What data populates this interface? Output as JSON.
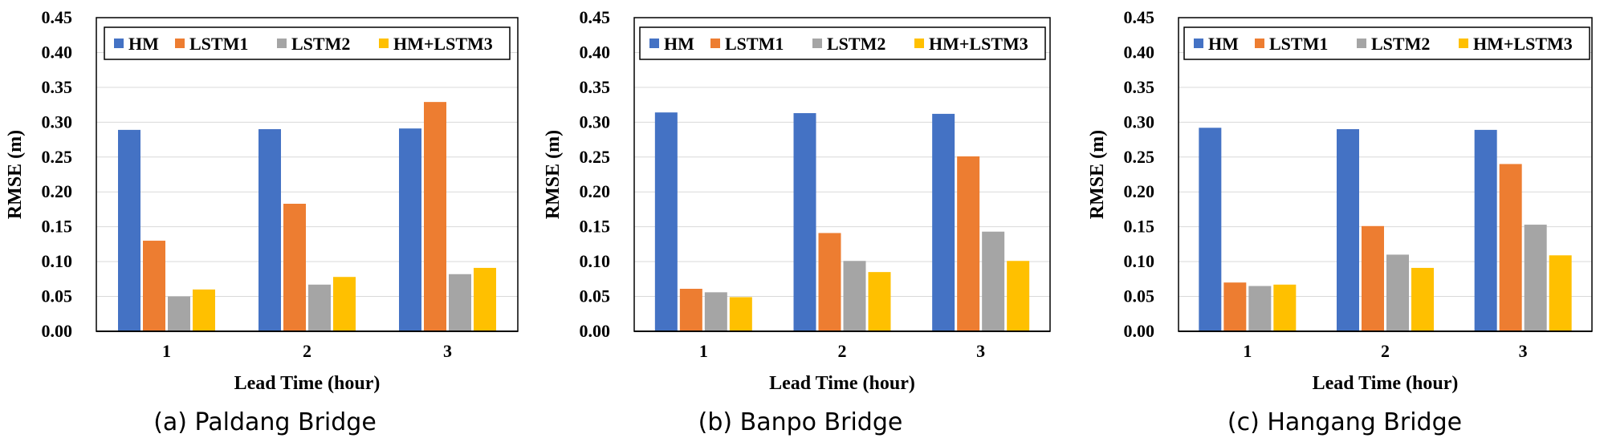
{
  "colors": {
    "HM": "#4472C4",
    "LSTM1": "#ED7D31",
    "LSTM2": "#A5A5A5",
    "HM+LSTM3": "#FFC000",
    "grid": "#d9d9d9",
    "axis": "#000000"
  },
  "chart_data": [
    {
      "type": "bar",
      "caption": "(a) Paldang Bridge",
      "xlabel": "Lead Time (hour)",
      "ylabel": "RMSE (m)",
      "ylim": [
        0,
        0.45
      ],
      "yticks": [
        "0.00",
        "0.05",
        "0.10",
        "0.15",
        "0.20",
        "0.25",
        "0.30",
        "0.35",
        "0.40",
        "0.45"
      ],
      "categories": [
        "1",
        "2",
        "3"
      ],
      "grid": true,
      "legend_position": "top",
      "series": [
        {
          "name": "HM",
          "values": [
            0.289,
            0.29,
            0.291
          ]
        },
        {
          "name": "LSTM1",
          "values": [
            0.13,
            0.183,
            0.329
          ]
        },
        {
          "name": "LSTM2",
          "values": [
            0.05,
            0.067,
            0.082
          ]
        },
        {
          "name": "HM+LSTM3",
          "values": [
            0.06,
            0.078,
            0.091
          ]
        }
      ]
    },
    {
      "type": "bar",
      "caption": "(b) Banpo Bridge",
      "xlabel": "Lead Time (hour)",
      "ylabel": "RMSE (m)",
      "ylim": [
        0,
        0.45
      ],
      "yticks": [
        "0.00",
        "0.05",
        "0.10",
        "0.15",
        "0.20",
        "0.25",
        "0.30",
        "0.35",
        "0.40",
        "0.45"
      ],
      "categories": [
        "1",
        "2",
        "3"
      ],
      "grid": true,
      "legend_position": "top",
      "series": [
        {
          "name": "HM",
          "values": [
            0.314,
            0.313,
            0.312
          ]
        },
        {
          "name": "LSTM1",
          "values": [
            0.061,
            0.141,
            0.251
          ]
        },
        {
          "name": "LSTM2",
          "values": [
            0.056,
            0.101,
            0.143
          ]
        },
        {
          "name": "HM+LSTM3",
          "values": [
            0.049,
            0.085,
            0.101
          ]
        }
      ]
    },
    {
      "type": "bar",
      "caption": "(c) Hangang Bridge",
      "xlabel": "Lead Time (hour)",
      "ylabel": "RMSE (m)",
      "ylim": [
        0,
        0.45
      ],
      "yticks": [
        "0.00",
        "0.05",
        "0.10",
        "0.15",
        "0.20",
        "0.25",
        "0.30",
        "0.35",
        "0.40",
        "0.45"
      ],
      "categories": [
        "1",
        "2",
        "3"
      ],
      "grid": true,
      "legend_position": "top",
      "series": [
        {
          "name": "HM",
          "values": [
            0.292,
            0.29,
            0.289
          ]
        },
        {
          "name": "LSTM1",
          "values": [
            0.07,
            0.151,
            0.24
          ]
        },
        {
          "name": "LSTM2",
          "values": [
            0.065,
            0.11,
            0.153
          ]
        },
        {
          "name": "HM+LSTM3",
          "values": [
            0.067,
            0.091,
            0.109
          ]
        }
      ]
    }
  ]
}
